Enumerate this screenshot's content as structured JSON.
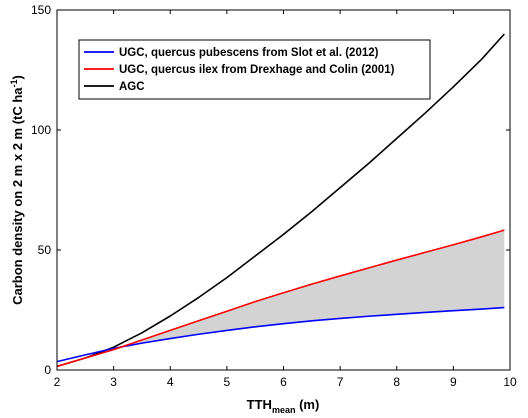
{
  "chart_data": {
    "type": "line",
    "title": "",
    "xlabel": {
      "main": "TTH",
      "subscript": "mean",
      "unit": " (m)"
    },
    "ylabel": {
      "main": "Carbon density on  2 m x  2 m (tC ha",
      "superscript": "-1",
      "close": ")"
    },
    "xlim": [
      2,
      10
    ],
    "ylim": [
      0,
      150
    ],
    "xticks": [
      2,
      3,
      4,
      5,
      6,
      7,
      8,
      9,
      10
    ],
    "yticks": [
      0,
      50,
      100,
      150
    ],
    "grid": false,
    "legend_position": "top-left",
    "x": [
      2.0,
      2.5,
      3.0,
      3.5,
      4.0,
      4.5,
      5.0,
      5.5,
      6.0,
      6.5,
      7.0,
      7.5,
      8.0,
      8.5,
      9.0,
      9.5,
      9.9
    ],
    "series": [
      {
        "name": "UGC, quercus pubescens from Slot et al. (2012)",
        "color": "#0000ff",
        "values": [
          3.5,
          6.3,
          9.0,
          11.2,
          13.1,
          14.9,
          16.5,
          18.0,
          19.3,
          20.5,
          21.5,
          22.4,
          23.2,
          24.0,
          24.7,
          25.4,
          26.0
        ]
      },
      {
        "name": "UGC, quercus ilex from Drexhage and Colin (2001)",
        "color": "#ff0000",
        "values": [
          1.5,
          5.0,
          8.5,
          12.5,
          16.5,
          20.5,
          24.5,
          28.5,
          32.2,
          35.8,
          39.2,
          42.5,
          45.8,
          49.0,
          52.2,
          55.5,
          58.3
        ]
      },
      {
        "name": "AGC",
        "color": "#000000",
        "values": [
          1.5,
          5.0,
          9.5,
          15.5,
          22.5,
          30.2,
          38.5,
          47.5,
          56.5,
          66.0,
          76.0,
          86.0,
          96.5,
          107.0,
          118.0,
          129.5,
          140.0
        ]
      }
    ],
    "shaded_region": {
      "between": [
        0,
        1
      ],
      "from_x": 3.0,
      "color": "#d3d3d3"
    }
  }
}
